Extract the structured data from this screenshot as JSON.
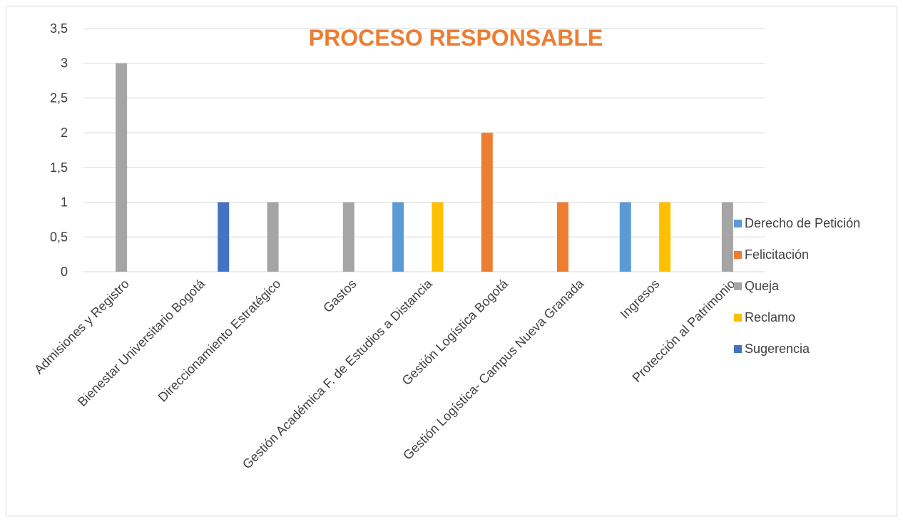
{
  "chart_data": {
    "type": "bar",
    "title": "PROCESO RESPONSABLE",
    "xlabel": "",
    "ylabel": "",
    "ylim": [
      0,
      3.5
    ],
    "yticks": [
      0,
      0.5,
      1,
      1.5,
      2,
      2.5,
      3,
      3.5
    ],
    "ytick_labels": [
      "0",
      "0,5",
      "1",
      "1,5",
      "2",
      "2,5",
      "3",
      "3,5"
    ],
    "grid": true,
    "legend_position": "right",
    "categories": [
      "Admisiones y Registro",
      "Bienestar Universitario Bogotá",
      "Direccionamiento Estratégico",
      "Gastos",
      "Gestión Académica F. de Estudios a Distancia",
      "Gestión Logística Bogotá",
      "Gestión Logística- Campus Nueva Granada",
      "Ingresos",
      "Protección al Patrimonio"
    ],
    "series": [
      {
        "name": "Derecho de Petición",
        "color": "#5b9bd5",
        "values": [
          0,
          0,
          0,
          0,
          1,
          0,
          0,
          1,
          0
        ]
      },
      {
        "name": "Felicitación",
        "color": "#ed7d31",
        "values": [
          0,
          0,
          0,
          0,
          0,
          2,
          1,
          0,
          0
        ]
      },
      {
        "name": "Queja",
        "color": "#a5a5a5",
        "values": [
          3,
          0,
          1,
          1,
          0,
          0,
          0,
          0,
          1
        ]
      },
      {
        "name": "Reclamo",
        "color": "#ffc000",
        "values": [
          0,
          0,
          0,
          0,
          1,
          0,
          0,
          1,
          0
        ]
      },
      {
        "name": "Sugerencia",
        "color": "#4472c4",
        "values": [
          0,
          1,
          0,
          0,
          0,
          0,
          0,
          0,
          0
        ]
      }
    ]
  }
}
